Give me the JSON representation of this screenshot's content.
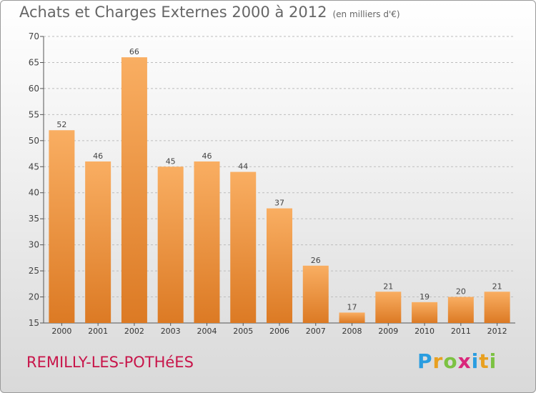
{
  "header": {
    "title": "Achats et Charges Externes 2000 à 2012",
    "subtitle": "(en milliers d'€)"
  },
  "footer": {
    "commune": "REMILLY-LES-POTHéES",
    "logo_letters": [
      "P",
      "r",
      "o",
      "x",
      "i",
      "t",
      "i"
    ],
    "logo_colors": [
      "#2a9de0",
      "#e8a020",
      "#7cc242",
      "#d9277b",
      "#2a9de0",
      "#e8a020",
      "#7cc242"
    ]
  },
  "chart_data": {
    "type": "bar",
    "categories": [
      "2000",
      "2001",
      "2002",
      "2003",
      "2004",
      "2005",
      "2006",
      "2007",
      "2008",
      "2009",
      "2010",
      "2011",
      "2012"
    ],
    "values": [
      52,
      46,
      66,
      45,
      46,
      44,
      37,
      26,
      17,
      21,
      19,
      20,
      21
    ],
    "ylim": [
      15,
      70
    ],
    "yticks": [
      15,
      20,
      25,
      30,
      35,
      40,
      45,
      50,
      55,
      60,
      65,
      70
    ],
    "grid": true,
    "bar_color": "#e8883a",
    "bar_color_light": "#f7ac62"
  }
}
